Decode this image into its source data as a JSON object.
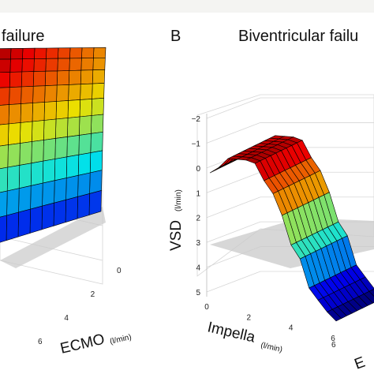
{
  "colors": {
    "background": "#ffffff",
    "top_strip": "#f4f4f2",
    "grid": "#d6d6d6",
    "zero_plane": "#c9c9c9",
    "mesh_line": "#000000"
  },
  "panels": [
    {
      "letter": "",
      "title": "failure",
      "x_axis_label": "ECMO",
      "x_axis_unit": "(l/min)",
      "x_ticks": [
        "0",
        "2",
        "4",
        "6"
      ],
      "y_ticks": [
        "",
        "",
        "",
        ""
      ],
      "z_axis_label": "",
      "z_axis_unit": ""
    },
    {
      "letter": "B",
      "title": "Biventricular failu",
      "x_axis_label": "Impella",
      "x_axis_unit": "(l/min)",
      "x_ticks": [
        "0",
        "2",
        "4",
        "6"
      ],
      "y_ticks": [
        "6"
      ],
      "z_axis_label": "VSD",
      "z_axis_unit": "(l/min)",
      "z_ticks": [
        "5",
        "4",
        "3",
        "2",
        "1",
        "0",
        "−1",
        "−2"
      ],
      "right_axis_letter": "E"
    }
  ],
  "chart_data": [
    {
      "type": "surface",
      "title": "failure",
      "xlabel": "ECMO (l/min)",
      "x": [
        0,
        1,
        2,
        3,
        4,
        5,
        6
      ],
      "colormap": "jet",
      "note_visible": "surface partially cropped at left edge"
    },
    {
      "type": "surface",
      "title": "Biventricular failu",
      "xlabel": "Impella (l/min)",
      "zlabel": "VSD (l/min)",
      "x": [
        0,
        1,
        2,
        3,
        4,
        5,
        6
      ],
      "zlim": [
        -2,
        5
      ],
      "z_ticks": [
        -2,
        -1,
        0,
        1,
        2,
        3,
        4,
        5
      ],
      "surface_z_by_impella": [
        2.8,
        3.6,
        3.7,
        2.6,
        0.6,
        -1.2,
        -1.9
      ],
      "colormap": "jet",
      "zero_plane": true
    }
  ]
}
